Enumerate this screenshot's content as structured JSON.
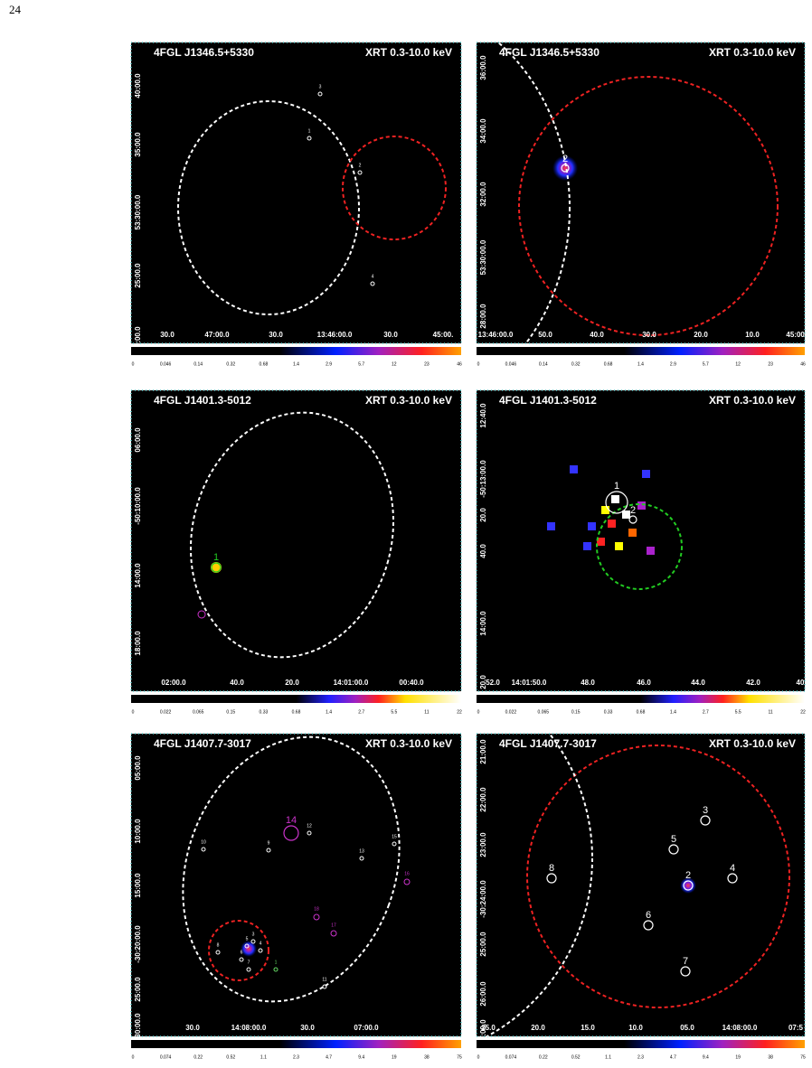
{
  "page_number": "24",
  "panels": [
    {
      "title": "4FGL J1346.5+5330",
      "band": "XRT 0.3-10.0 keV",
      "y_ticks": [
        "40:00.0",
        "35:00.0",
        "53:30:00.0",
        "25:00.0",
        "20:00.0"
      ],
      "x_ticks": [
        "30.0",
        "47:00.0",
        "30.0",
        "13:46:00.0",
        "30.0",
        "45:00."
      ],
      "colorbar_ticks": [
        "0",
        "0.046",
        "0.14",
        "0.32",
        "0.68",
        "1.4",
        "2.9",
        "5.7",
        "12",
        "23",
        "46"
      ],
      "sources": [
        "3",
        "1",
        "2",
        "4"
      ]
    },
    {
      "title": "4FGL J1346.5+5330",
      "band": "XRT 0.3-10.0 keV",
      "y_ticks": [
        "36:00.0",
        "34:00.0",
        "32:00.0",
        "53:30:00.0",
        "28:00.0"
      ],
      "x_ticks": [
        "13:46:00.0",
        "50.0",
        "40.0",
        "30.0",
        "20.0",
        "10.0",
        "45:00.0"
      ],
      "colorbar_ticks": [
        "0",
        "0.046",
        "0.14",
        "0.32",
        "0.68",
        "1.4",
        "2.9",
        "5.7",
        "12",
        "23",
        "46"
      ],
      "sources": [
        "2"
      ]
    },
    {
      "title": "4FGL J1401.3-5012",
      "band": "XRT 0.3-10.0 keV",
      "y_ticks": [
        "06:00.0",
        "-50:10:00.0",
        "14:00.0",
        "18:00.0"
      ],
      "x_ticks": [
        "02:00.0",
        "40.0",
        "20.0",
        "14:01:00.0",
        "00:40.0"
      ],
      "colorbar_ticks": [
        "0",
        "0.022",
        "0.065",
        "0.15",
        "0.33",
        "0.68",
        "1.4",
        "2.7",
        "5.5",
        "11",
        "22"
      ],
      "sources": [
        "1"
      ]
    },
    {
      "title": "4FGL J1401.3-5012",
      "band": "XRT 0.3-10.0 keV",
      "y_ticks": [
        "12:40.0",
        "-50:13:00.0",
        "20.0",
        "40.0",
        "14:00.0",
        "20.0"
      ],
      "x_ticks": [
        "52.0",
        "14:01:50.0",
        "48.0",
        "46.0",
        "44.0",
        "42.0",
        "40"
      ],
      "colorbar_ticks": [
        "0",
        "0.022",
        "0.065",
        "0.15",
        "0.33",
        "0.68",
        "1.4",
        "2.7",
        "5.5",
        "11",
        "22"
      ],
      "sources": [
        "1",
        "2"
      ]
    },
    {
      "title": "4FGL J1407.7-3017",
      "band": "XRT 0.3-10.0 keV",
      "y_ticks": [
        "05:00.0",
        "10:00.0",
        "15:00.0",
        "-30:20:00.0",
        "25:00.0",
        "30:00.0"
      ],
      "x_ticks": [
        "30.0",
        "14:08:00.0",
        "30.0",
        "07:00.0"
      ],
      "colorbar_ticks": [
        "0",
        "0.074",
        "0.22",
        "0.52",
        "1.1",
        "2.3",
        "4.7",
        "9.4",
        "19",
        "38",
        "75"
      ],
      "sources": [
        "14",
        "12",
        "15",
        "10",
        "9",
        "13",
        "16",
        "18",
        "17",
        "8",
        "5",
        "3",
        "4",
        "6",
        "7",
        "1",
        "11"
      ]
    },
    {
      "title": "4FGL J1407.7-3017",
      "band": "XRT 0.3-10.0 keV",
      "y_ticks": [
        "21:00.0",
        "22:00.0",
        "23:00.0",
        "-30:24:00.0",
        "25:00.0",
        "26:00.0",
        "27:00.0"
      ],
      "x_ticks": [
        "25.0",
        "20.0",
        "15.0",
        "10.0",
        "05.0",
        "14:08:00.0",
        "07:5"
      ],
      "colorbar_ticks": [
        "0",
        "0.074",
        "0.22",
        "0.52",
        "1.1",
        "2.3",
        "4.7",
        "9.4",
        "19",
        "38",
        "75"
      ],
      "sources": [
        "3",
        "5",
        "8",
        "4",
        "2",
        "6",
        "7"
      ]
    }
  ]
}
